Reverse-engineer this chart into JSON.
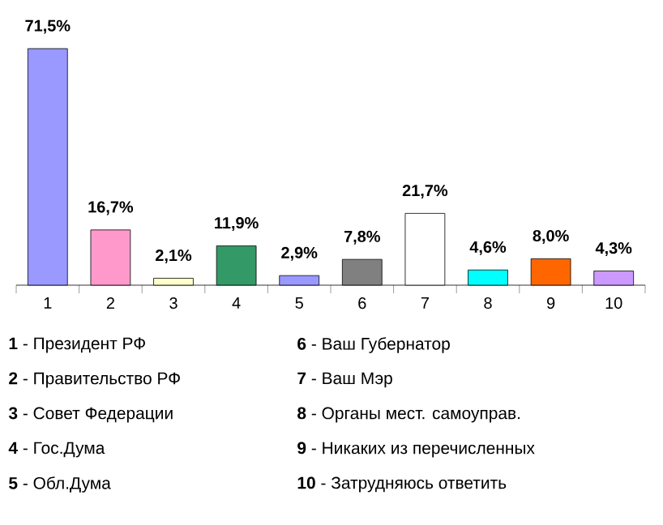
{
  "chart_data": {
    "type": "bar",
    "categories": [
      "1",
      "2",
      "3",
      "4",
      "5",
      "6",
      "7",
      "8",
      "9",
      "10"
    ],
    "values": [
      71.5,
      16.7,
      2.1,
      11.9,
      2.9,
      7.8,
      21.7,
      4.6,
      8.0,
      4.3
    ],
    "value_labels": [
      "71,5%",
      "16,7%",
      "2,1%",
      "11,9%",
      "2,9%",
      "7,8%",
      "21,7%",
      "4,6%",
      "8,0%",
      "4,3%"
    ],
    "colors": [
      "#9999ff",
      "#ff99cc",
      "#ffffcc",
      "#339966",
      "#9999ff",
      "#808080",
      "#ffffff",
      "#00ffff",
      "#ff6600",
      "#cc99ff"
    ],
    "annotations": [
      "**1** - Президент РФ",
      "**2** - Правительство РФ",
      "**3** - Совет Федерации",
      "**4** - Гос.Дума",
      "**5** - Обл.Дума",
      "**6** - Ваш Губернатор",
      "**7** - Ваш Мэр",
      "**8** - Органы мест. самоуправ.",
      "**9** - Никаких из перечисленных",
      "**10** - Затрудняюсь ответить"
    ]
  }
}
